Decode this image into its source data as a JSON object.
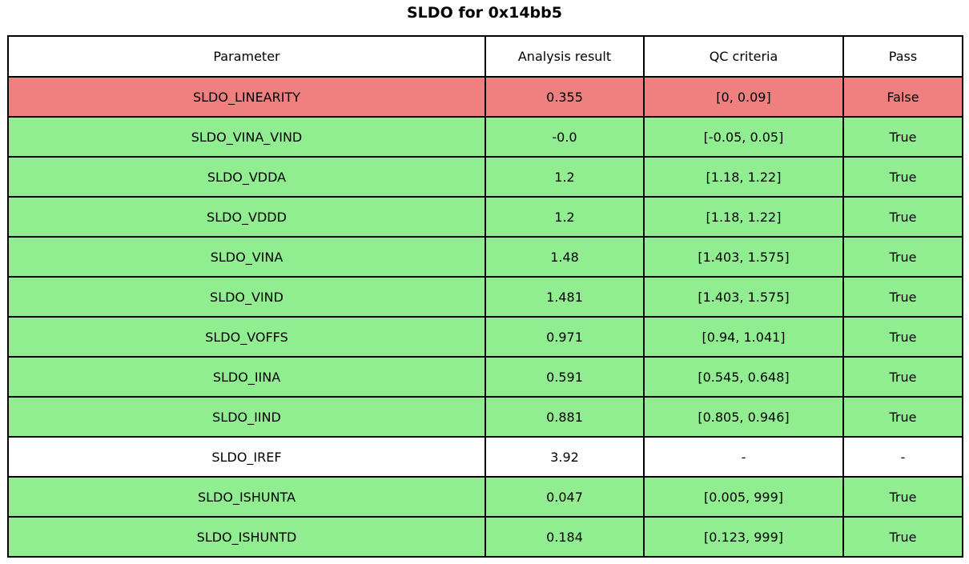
{
  "title": "SLDO for 0x14bb5",
  "chart_data": {
    "type": "table",
    "title": "SLDO for 0x14bb5",
    "columns": [
      "Parameter",
      "Analysis result",
      "QC criteria",
      "Pass"
    ],
    "rows": [
      {
        "parameter": "SLDO_LINEARITY",
        "result": "0.355",
        "criteria": "[0, 0.09]",
        "pass": "False",
        "status": "fail"
      },
      {
        "parameter": "SLDO_VINA_VIND",
        "result": "-0.0",
        "criteria": "[-0.05, 0.05]",
        "pass": "True",
        "status": "pass"
      },
      {
        "parameter": "SLDO_VDDA",
        "result": "1.2",
        "criteria": "[1.18, 1.22]",
        "pass": "True",
        "status": "pass"
      },
      {
        "parameter": "SLDO_VDDD",
        "result": "1.2",
        "criteria": "[1.18, 1.22]",
        "pass": "True",
        "status": "pass"
      },
      {
        "parameter": "SLDO_VINA",
        "result": "1.48",
        "criteria": "[1.403, 1.575]",
        "pass": "True",
        "status": "pass"
      },
      {
        "parameter": "SLDO_VIND",
        "result": "1.481",
        "criteria": "[1.403, 1.575]",
        "pass": "True",
        "status": "pass"
      },
      {
        "parameter": "SLDO_VOFFS",
        "result": "0.971",
        "criteria": "[0.94, 1.041]",
        "pass": "True",
        "status": "pass"
      },
      {
        "parameter": "SLDO_IINA",
        "result": "0.591",
        "criteria": "[0.545, 0.648]",
        "pass": "True",
        "status": "pass"
      },
      {
        "parameter": "SLDO_IIND",
        "result": "0.881",
        "criteria": "[0.805, 0.946]",
        "pass": "True",
        "status": "pass"
      },
      {
        "parameter": "SLDO_IREF",
        "result": "3.92",
        "criteria": "-",
        "pass": "-",
        "status": "none"
      },
      {
        "parameter": "SLDO_ISHUNTA",
        "result": "0.047",
        "criteria": "[0.005, 999]",
        "pass": "True",
        "status": "pass"
      },
      {
        "parameter": "SLDO_ISHUNTD",
        "result": "0.184",
        "criteria": "[0.123, 999]",
        "pass": "True",
        "status": "pass"
      }
    ],
    "colors": {
      "pass": "#90EE90",
      "fail": "#F08080",
      "none": "#FFFFFF",
      "border": "#000000"
    }
  }
}
